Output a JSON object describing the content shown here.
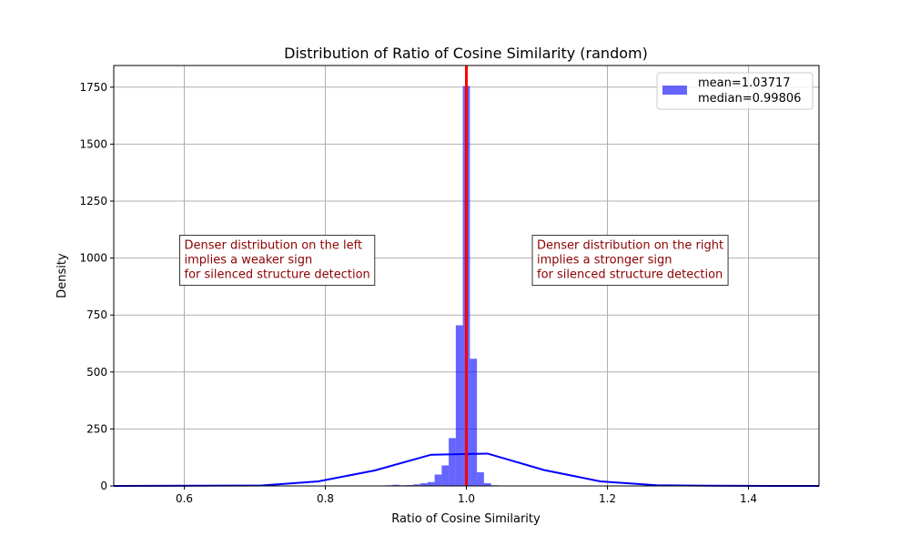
{
  "chart_data": {
    "type": "bar",
    "title": "Distribution of Ratio of Cosine Similarity (random)",
    "xlabel": "Ratio of Cosine Similarity",
    "ylabel": "Density",
    "xlim": [
      0.5,
      1.5
    ],
    "ylim": [
      0,
      1845
    ],
    "grid": true,
    "legend_position": "top-right",
    "x_ticks": [
      0.6,
      0.8,
      1.0,
      1.2,
      1.4
    ],
    "x_tick_labels": [
      "0.6",
      "0.8",
      "1.0",
      "1.2",
      "1.4"
    ],
    "y_ticks": [
      0,
      250,
      500,
      750,
      1000,
      1250,
      1500,
      1750
    ],
    "y_tick_labels": [
      "0",
      "250",
      "500",
      "750",
      "1000",
      "1250",
      "1500",
      "1750"
    ],
    "legend": {
      "label_line1": "mean=1.03717",
      "label_line2": "median=0.99806"
    },
    "histogram": {
      "color": "#0000ff",
      "bin_width": 0.01,
      "bins": [
        {
          "x": 0.79,
          "value": 2
        },
        {
          "x": 0.84,
          "value": 2
        },
        {
          "x": 0.85,
          "value": 2
        },
        {
          "x": 0.87,
          "value": 2
        },
        {
          "x": 0.89,
          "value": 3
        },
        {
          "x": 0.9,
          "value": 5
        },
        {
          "x": 0.91,
          "value": 3
        },
        {
          "x": 0.92,
          "value": 4
        },
        {
          "x": 0.93,
          "value": 7
        },
        {
          "x": 0.94,
          "value": 12
        },
        {
          "x": 0.95,
          "value": 17
        },
        {
          "x": 0.96,
          "value": 50
        },
        {
          "x": 0.97,
          "value": 90
        },
        {
          "x": 0.98,
          "value": 210
        },
        {
          "x": 0.99,
          "value": 705
        },
        {
          "x": 1.0,
          "value": 1755
        },
        {
          "x": 1.01,
          "value": 558
        },
        {
          "x": 1.02,
          "value": 60
        },
        {
          "x": 1.03,
          "value": 12
        },
        {
          "x": 1.04,
          "value": 3
        },
        {
          "x": 1.05,
          "value": 2
        },
        {
          "x": 1.06,
          "value": 2
        },
        {
          "x": 1.07,
          "value": 2
        },
        {
          "x": 1.12,
          "value": 1
        }
      ]
    },
    "density_curve": {
      "color": "#0000ff",
      "x": [
        0.5,
        0.71,
        0.79,
        0.87,
        0.95,
        1.03,
        1.11,
        1.19,
        1.27,
        1.35,
        1.43,
        1.5
      ],
      "y": [
        0,
        2,
        20,
        68,
        137,
        142,
        70,
        20,
        3,
        1,
        0,
        0
      ]
    },
    "vertical_line": {
      "x": 1.0,
      "color": "#ff0000"
    },
    "annotations": [
      {
        "x": 0.6,
        "y": 1080,
        "lines": [
          "Denser distribution on the left",
          "implies a weaker sign",
          "for silenced structure detection"
        ]
      },
      {
        "x": 1.1,
        "y": 1080,
        "lines": [
          "Denser distribution on the right",
          "implies a stronger sign",
          "for silenced structure detection"
        ]
      }
    ]
  }
}
